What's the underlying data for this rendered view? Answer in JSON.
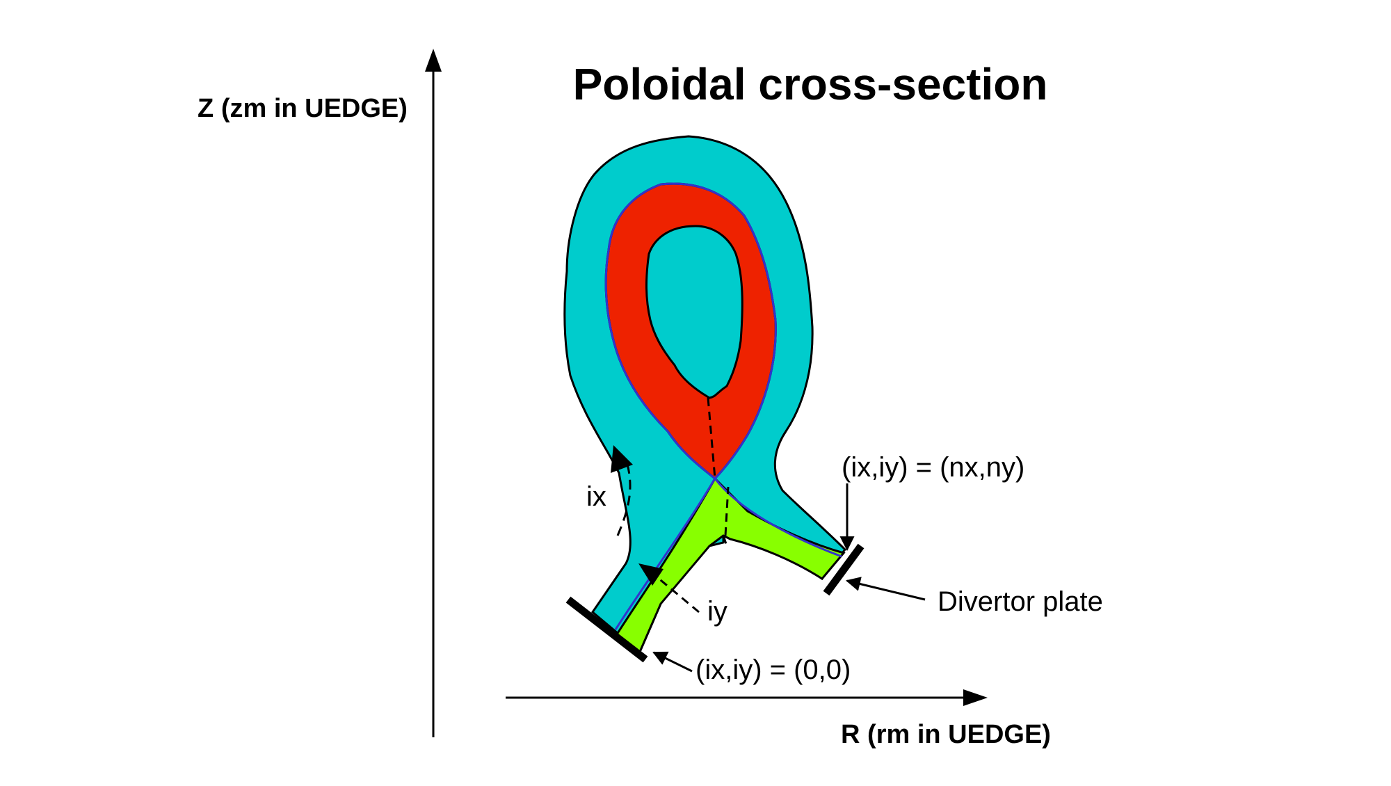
{
  "title": "Poloidal cross-section",
  "axes": {
    "z_label": "Z (zm in UEDGE)",
    "r_label": "R (rm in UEDGE)"
  },
  "labels": {
    "ix": "ix",
    "iy": "iy",
    "origin": "(ix,iy) = (0,0)",
    "end": "(ix,iy) = (nx,ny)",
    "divertor": "Divertor plate"
  },
  "colors": {
    "core": "#ee2200",
    "sol": "#00cccc",
    "private_flux": "#88ff00",
    "separatrix": "#3333cc"
  }
}
